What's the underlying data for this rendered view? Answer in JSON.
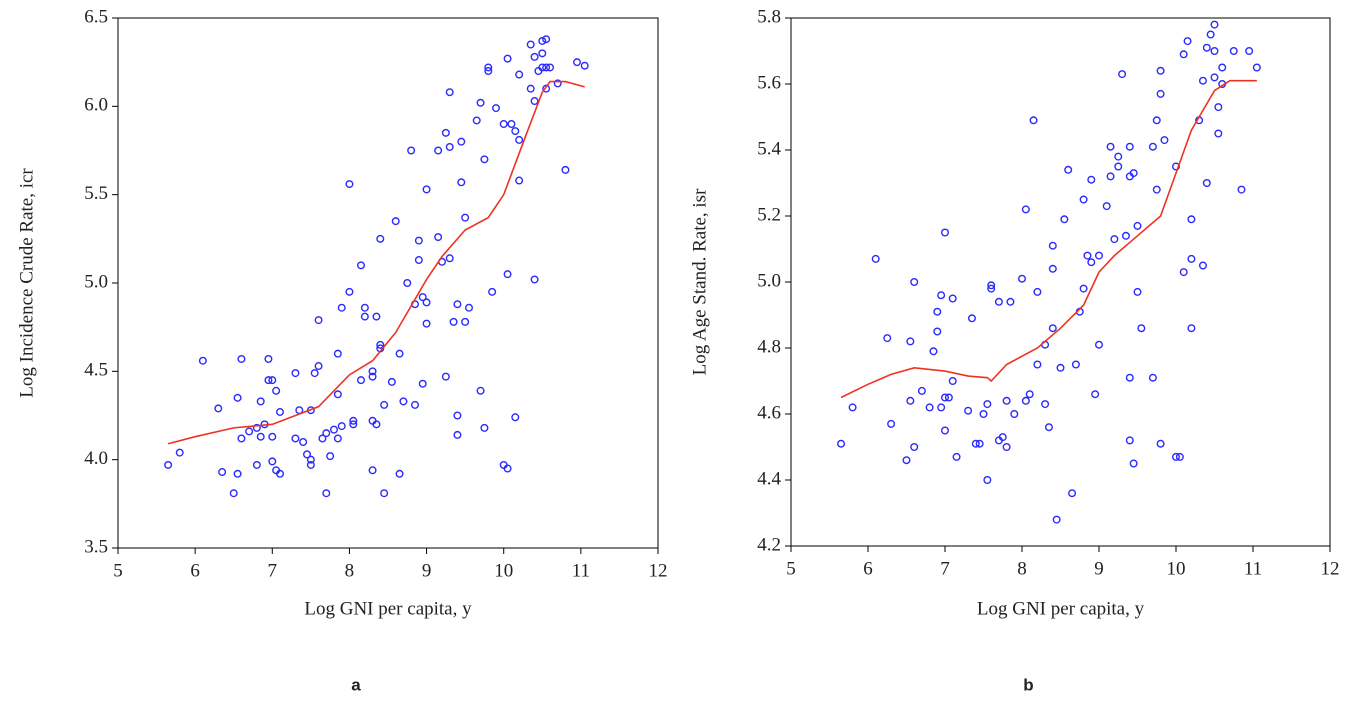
{
  "chart_data": [
    {
      "type": "scatter",
      "caption": "a",
      "xlabel": "Log GNI per capita, y",
      "ylabel": "Log Incidence Crude Rate, icr",
      "xlim": [
        5,
        12
      ],
      "xticks": [
        5,
        6,
        7,
        8,
        9,
        10,
        11,
        12
      ],
      "ylim": [
        3.5,
        6.5
      ],
      "yticks": [
        3.5,
        {
          "value": 4,
          "label": "4.0"
        },
        4.5,
        {
          "value": 5,
          "label": "5.0"
        },
        5.5,
        {
          "value": 6,
          "label": "6.0"
        },
        6.5
      ],
      "series": [
        {
          "mode": "markers",
          "color": "#2a2aff",
          "x": [
            5.65,
            5.8,
            6.1,
            6.3,
            6.35,
            6.5,
            6.55,
            6.55,
            6.6,
            6.6,
            6.7,
            6.8,
            6.8,
            6.85,
            6.85,
            6.9,
            6.95,
            6.95,
            7.0,
            7.0,
            7.0,
            7.05,
            7.05,
            7.1,
            7.1,
            7.3,
            7.3,
            7.35,
            7.4,
            7.45,
            7.5,
            7.5,
            7.5,
            7.55,
            7.6,
            7.6,
            7.65,
            7.7,
            7.7,
            7.75,
            7.8,
            7.85,
            7.85,
            7.85,
            7.9,
            7.9,
            8.0,
            8.0,
            8.05,
            8.05,
            8.15,
            8.15,
            8.2,
            8.2,
            8.3,
            8.3,
            8.3,
            8.3,
            8.35,
            8.35,
            8.4,
            8.4,
            8.4,
            8.45,
            8.45,
            8.55,
            8.6,
            8.65,
            8.65,
            8.7,
            8.75,
            8.8,
            8.85,
            8.85,
            8.9,
            8.9,
            8.95,
            8.95,
            9.0,
            9.0,
            9.0,
            9.15,
            9.15,
            9.2,
            9.25,
            9.25,
            9.3,
            9.3,
            9.3,
            9.35,
            9.4,
            9.4,
            9.4,
            9.45,
            9.45,
            9.5,
            9.5,
            9.55,
            9.65,
            9.7,
            9.7,
            9.75,
            9.8,
            9.8,
            9.85,
            9.9,
            10.0,
            10.0,
            10.05,
            10.05,
            10.05,
            10.1,
            10.15,
            10.15,
            10.2,
            10.2,
            10.2,
            10.35,
            10.35,
            10.4,
            10.4,
            10.4,
            10.45,
            10.5,
            10.5,
            10.5,
            10.55,
            10.55,
            10.55,
            10.6,
            10.7,
            10.8,
            10.95,
            11.05,
            9.75
          ],
          "values": [
            3.97,
            4.04,
            4.56,
            4.29,
            3.93,
            3.81,
            4.35,
            3.92,
            4.57,
            4.12,
            4.16,
            3.97,
            4.18,
            4.13,
            4.33,
            4.2,
            4.57,
            4.45,
            4.45,
            3.99,
            4.13,
            3.94,
            4.39,
            4.27,
            3.92,
            4.49,
            4.12,
            4.28,
            4.1,
            4.03,
            4.0,
            3.97,
            4.28,
            4.49,
            4.79,
            4.53,
            4.12,
            3.81,
            4.15,
            4.02,
            4.17,
            4.12,
            4.37,
            4.6,
            4.86,
            4.19,
            4.95,
            5.56,
            4.2,
            4.22,
            4.45,
            5.1,
            4.81,
            4.86,
            4.22,
            4.5,
            4.47,
            3.94,
            4.81,
            4.2,
            4.65,
            4.63,
            5.25,
            3.81,
            4.31,
            4.44,
            5.35,
            4.6,
            3.92,
            4.33,
            5.0,
            5.75,
            4.31,
            4.88,
            5.24,
            5.13,
            4.92,
            4.43,
            4.89,
            5.53,
            4.77,
            5.26,
            5.75,
            5.12,
            5.85,
            4.47,
            6.08,
            5.77,
            5.14,
            4.78,
            4.14,
            4.25,
            4.88,
            5.8,
            5.57,
            5.37,
            4.78,
            4.86,
            5.92,
            4.39,
            6.02,
            5.7,
            6.2,
            6.22,
            4.95,
            5.99,
            5.9,
            3.97,
            6.27,
            3.95,
            5.05,
            5.9,
            5.86,
            4.24,
            6.18,
            5.58,
            5.81,
            6.1,
            6.35,
            5.02,
            6.03,
            6.28,
            6.2,
            6.22,
            6.37,
            6.3,
            6.38,
            6.22,
            6.1,
            6.22,
            6.13,
            5.64,
            6.25,
            6.23,
            4.18
          ]
        },
        {
          "mode": "line",
          "color": "#ee3322",
          "x": [
            5.65,
            6.0,
            6.5,
            7.0,
            7.3,
            7.6,
            8.0,
            8.3,
            8.6,
            9.0,
            9.2,
            9.5,
            9.8,
            10.0,
            10.3,
            10.5,
            10.6,
            10.8,
            11.05
          ],
          "values": [
            4.09,
            4.13,
            4.18,
            4.2,
            4.25,
            4.3,
            4.48,
            4.56,
            4.72,
            5.02,
            5.15,
            5.3,
            5.37,
            5.5,
            5.85,
            6.08,
            6.14,
            6.14,
            6.11
          ]
        }
      ]
    },
    {
      "type": "scatter",
      "caption": "b",
      "xlabel": "Log GNI per capita, y",
      "ylabel": "Log Age Stand. Rate, isr",
      "xlim": [
        5,
        12
      ],
      "xticks": [
        5,
        6,
        7,
        8,
        9,
        10,
        11,
        12
      ],
      "ylim": [
        4.2,
        5.8
      ],
      "yticks": [
        4.2,
        4.4,
        4.6,
        4.8,
        {
          "value": 5,
          "label": "5.0"
        },
        5.2,
        5.4,
        5.6,
        5.8
      ],
      "series": [
        {
          "mode": "markers",
          "color": "#2a2aff",
          "x": [
            5.65,
            5.8,
            6.1,
            6.25,
            6.3,
            6.5,
            6.55,
            6.55,
            6.6,
            6.6,
            6.7,
            6.8,
            6.85,
            6.9,
            6.9,
            6.95,
            6.95,
            7.0,
            7.0,
            7.0,
            7.05,
            7.1,
            7.1,
            7.15,
            7.3,
            7.35,
            7.4,
            7.45,
            7.5,
            7.55,
            7.55,
            7.6,
            7.6,
            7.7,
            7.7,
            7.75,
            7.8,
            7.8,
            7.85,
            7.9,
            8.0,
            8.05,
            8.05,
            8.1,
            8.15,
            8.2,
            8.2,
            8.3,
            8.3,
            8.35,
            8.4,
            8.4,
            8.4,
            8.45,
            8.5,
            8.55,
            8.6,
            8.65,
            8.7,
            8.75,
            8.8,
            8.8,
            8.85,
            8.9,
            8.9,
            8.95,
            9.0,
            9.0,
            9.1,
            9.15,
            9.15,
            9.2,
            9.25,
            9.25,
            9.3,
            9.35,
            9.4,
            9.4,
            9.4,
            9.45,
            9.45,
            9.5,
            9.5,
            9.55,
            9.7,
            9.7,
            9.75,
            9.75,
            9.8,
            9.8,
            9.85,
            10.0,
            10.0,
            10.05,
            10.1,
            10.1,
            10.15,
            10.2,
            10.2,
            10.2,
            10.3,
            10.35,
            10.35,
            10.4,
            10.4,
            10.45,
            10.5,
            10.5,
            10.5,
            10.55,
            10.55,
            10.6,
            10.6,
            10.75,
            10.85,
            10.95,
            11.05,
            9.4,
            9.8
          ],
          "values": [
            4.51,
            4.62,
            5.07,
            4.83,
            4.57,
            4.46,
            4.82,
            4.64,
            5.0,
            4.5,
            4.67,
            4.62,
            4.79,
            4.85,
            4.91,
            4.96,
            4.62,
            5.15,
            4.65,
            4.55,
            4.65,
            4.95,
            4.7,
            4.47,
            4.61,
            4.89,
            4.51,
            4.51,
            4.6,
            4.4,
            4.63,
            4.99,
            4.98,
            4.52,
            4.94,
            4.53,
            4.64,
            4.5,
            4.94,
            4.6,
            5.01,
            5.22,
            4.64,
            4.66,
            5.49,
            4.97,
            4.75,
            4.63,
            4.81,
            4.56,
            5.11,
            4.86,
            5.04,
            4.28,
            4.74,
            5.19,
            5.34,
            4.36,
            4.75,
            4.91,
            5.25,
            4.98,
            5.08,
            5.31,
            5.06,
            4.66,
            4.81,
            5.08,
            5.23,
            5.41,
            5.32,
            5.13,
            5.35,
            5.38,
            5.63,
            5.14,
            5.32,
            5.41,
            4.71,
            4.45,
            5.33,
            4.97,
            5.17,
            4.86,
            4.71,
            5.41,
            5.28,
            5.49,
            5.57,
            5.64,
            5.43,
            5.35,
            4.47,
            4.47,
            5.69,
            5.03,
            5.73,
            4.86,
            5.07,
            5.19,
            5.49,
            5.61,
            5.05,
            5.71,
            5.3,
            5.75,
            5.62,
            5.78,
            5.7,
            5.45,
            5.53,
            5.65,
            5.6,
            5.7,
            5.28,
            5.7,
            5.65,
            4.52,
            4.51
          ]
        },
        {
          "mode": "line",
          "color": "#ee3322",
          "x": [
            5.65,
            6.0,
            6.3,
            6.6,
            7.0,
            7.3,
            7.55,
            7.6,
            7.8,
            8.2,
            8.5,
            8.8,
            9.0,
            9.2,
            9.5,
            9.8,
            10.0,
            10.2,
            10.5,
            10.7,
            11.05
          ],
          "values": [
            4.65,
            4.69,
            4.72,
            4.74,
            4.73,
            4.715,
            4.71,
            4.7,
            4.75,
            4.8,
            4.86,
            4.93,
            5.03,
            5.08,
            5.14,
            5.2,
            5.33,
            5.46,
            5.58,
            5.61,
            5.61
          ]
        }
      ]
    }
  ]
}
